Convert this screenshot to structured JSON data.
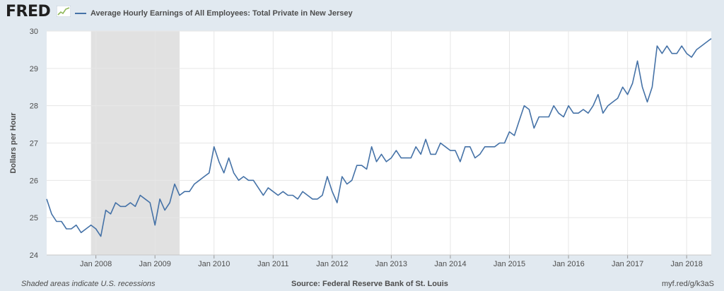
{
  "header": {
    "logo_text": "FRED",
    "logo_icon": "fred-chart-icon"
  },
  "colors": {
    "line": "#4572a7",
    "recession": "#e1e1e1",
    "background": "#e1e9f0",
    "plot": "#ffffff",
    "grid": "#e6e6e6"
  },
  "chart_data": {
    "type": "line",
    "title": "",
    "xlabel": "",
    "ylabel": "Dollars per Hour",
    "ylim": [
      24,
      30
    ],
    "yticks": [
      "24",
      "25",
      "26",
      "27",
      "28",
      "29",
      "30"
    ],
    "xticks": [
      "Jan 2008",
      "Jan 2009",
      "Jan 2010",
      "Jan 2011",
      "Jan 2012",
      "Jan 2013",
      "Jan 2014",
      "Jan 2015",
      "Jan 2016",
      "Jan 2017",
      "Jan 2018"
    ],
    "x_start": "2007-03",
    "x_end": "2018-06",
    "grid": true,
    "legend": "top-left",
    "recessions": [
      {
        "start": "2007-12",
        "end": "2009-06"
      }
    ],
    "series": [
      {
        "name": "Average Hourly Earnings of All Employees: Total Private in New Jersey",
        "values": [
          25.5,
          25.1,
          24.9,
          24.9,
          24.7,
          24.7,
          24.8,
          24.6,
          24.7,
          24.8,
          24.7,
          24.5,
          25.2,
          25.1,
          25.4,
          25.3,
          25.3,
          25.4,
          25.3,
          25.6,
          25.5,
          25.4,
          24.8,
          25.5,
          25.2,
          25.4,
          25.9,
          25.6,
          25.7,
          25.7,
          25.9,
          26.0,
          26.1,
          26.2,
          26.9,
          26.5,
          26.2,
          26.6,
          26.2,
          26.0,
          26.1,
          26.0,
          26.0,
          25.8,
          25.6,
          25.8,
          25.7,
          25.6,
          25.7,
          25.6,
          25.6,
          25.5,
          25.7,
          25.6,
          25.5,
          25.5,
          25.6,
          26.1,
          25.7,
          25.4,
          26.1,
          25.9,
          26.0,
          26.4,
          26.4,
          26.3,
          26.9,
          26.5,
          26.7,
          26.5,
          26.6,
          26.8,
          26.6,
          26.6,
          26.6,
          26.9,
          26.7,
          27.1,
          26.7,
          26.7,
          27.0,
          26.9,
          26.8,
          26.8,
          26.5,
          26.9,
          26.9,
          26.6,
          26.7,
          26.9,
          26.9,
          26.9,
          27.0,
          27.0,
          27.3,
          27.2,
          27.6,
          28.0,
          27.9,
          27.4,
          27.7,
          27.7,
          27.7,
          28.0,
          27.8,
          27.7,
          28.0,
          27.8,
          27.8,
          27.9,
          27.8,
          28.0,
          28.3,
          27.8,
          28.0,
          28.1,
          28.2,
          28.5,
          28.3,
          28.6,
          29.2,
          28.5,
          28.1,
          28.5,
          29.6,
          29.4,
          29.6,
          29.4,
          29.4,
          29.6,
          29.4,
          29.3,
          29.5,
          29.6,
          29.7,
          29.8
        ]
      }
    ]
  },
  "footer": {
    "note": "Shaded areas indicate U.S. recessions",
    "source": "Source: Federal Reserve Bank of St. Louis",
    "url": "myf.red/g/k3aS"
  }
}
